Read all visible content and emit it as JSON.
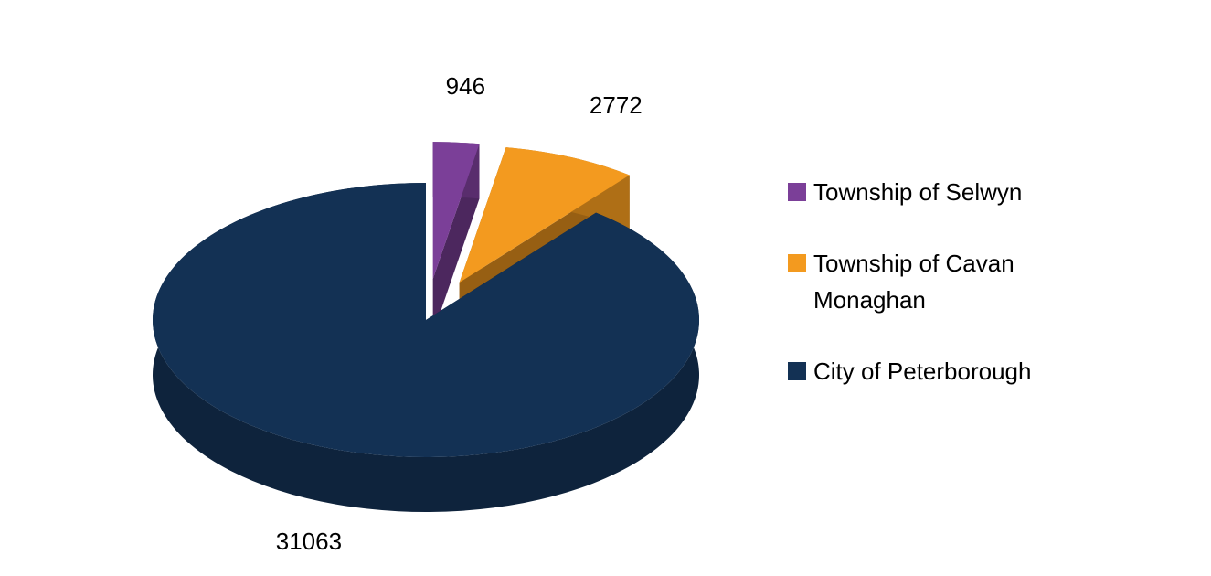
{
  "chart_data": {
    "type": "pie3d",
    "categories": [
      "Township of Selwyn",
      "Township of Cavan Monaghan",
      "City of Peterborough"
    ],
    "values": [
      946,
      2772,
      31063
    ],
    "colors": [
      "#7b3f98",
      "#f39a1f",
      "#133154"
    ],
    "exploded": [
      true,
      true,
      false
    ],
    "legend": "right"
  }
}
